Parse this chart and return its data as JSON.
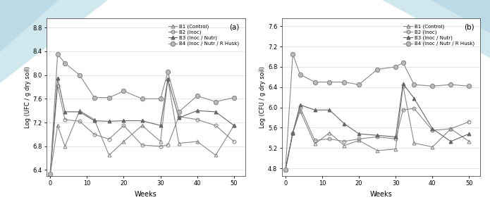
{
  "weeks": [
    0,
    2,
    4,
    8,
    12,
    16,
    20,
    25,
    30,
    32,
    35,
    40,
    45,
    50
  ],
  "chart_a": {
    "title": "(a)",
    "ylabel": "Log (UFC / g dry soil)",
    "xlabel": "Weeks",
    "ylim": [
      6.3,
      8.95
    ],
    "yticks": [
      6.4,
      6.8,
      7.2,
      7.6,
      8.0,
      8.4,
      8.8
    ],
    "B1": [
      6.33,
      7.15,
      6.8,
      7.4,
      7.25,
      6.65,
      6.88,
      7.15,
      6.88,
      7.93,
      6.85,
      6.88,
      6.65,
      7.15
    ],
    "B2": [
      6.33,
      7.82,
      7.25,
      7.22,
      7.0,
      6.92,
      7.15,
      6.82,
      6.8,
      6.82,
      7.3,
      7.25,
      7.15,
      6.88
    ],
    "B3": [
      6.33,
      7.95,
      7.38,
      7.38,
      7.23,
      7.22,
      7.23,
      7.23,
      7.15,
      7.93,
      7.28,
      7.4,
      7.38,
      7.15
    ],
    "B4": [
      6.33,
      8.35,
      8.2,
      8.0,
      7.62,
      7.62,
      7.73,
      7.6,
      7.6,
      8.05,
      7.38,
      7.65,
      7.55,
      7.62
    ]
  },
  "chart_b": {
    "title": "(b)",
    "ylabel": "Log (CFU / g dry soil)",
    "xlabel": "Weeks",
    "ylim": [
      4.65,
      7.75
    ],
    "yticks": [
      4.8,
      5.2,
      5.6,
      6.0,
      6.4,
      6.8,
      7.2,
      7.6
    ],
    "B1": [
      4.77,
      5.5,
      5.93,
      5.28,
      5.5,
      5.25,
      5.35,
      5.15,
      5.18,
      6.43,
      5.3,
      5.22,
      5.58,
      5.33
    ],
    "B2": [
      4.77,
      5.5,
      6.0,
      5.35,
      5.38,
      5.33,
      5.38,
      5.42,
      5.38,
      5.95,
      5.98,
      5.55,
      5.58,
      5.72
    ],
    "B3": [
      4.77,
      5.5,
      6.05,
      5.95,
      5.95,
      5.68,
      5.48,
      5.45,
      5.42,
      6.47,
      6.18,
      5.58,
      5.33,
      5.48
    ],
    "B4": [
      4.77,
      7.05,
      6.65,
      6.5,
      6.5,
      6.5,
      6.45,
      6.75,
      6.8,
      6.88,
      6.45,
      6.42,
      6.45,
      6.42
    ]
  },
  "legend_labels": [
    "B1 (Control)",
    "B2 (Inoc)",
    "B3 (Inoc / Nutr)",
    "B4 (Inoc / Nutr / R Husk)"
  ],
  "line_color": "#888888",
  "B3_color": "#555555",
  "B4_fill": "#aaaaaa"
}
